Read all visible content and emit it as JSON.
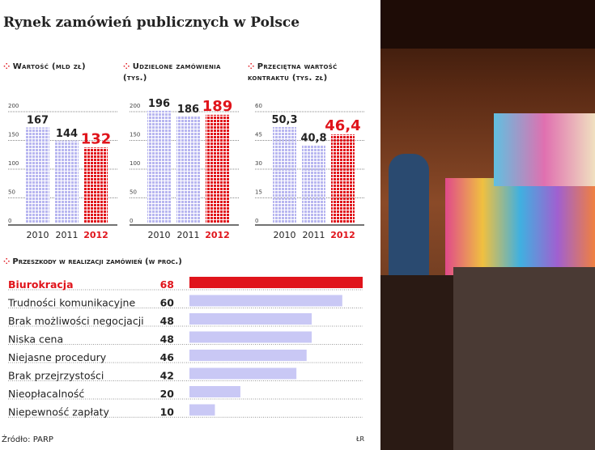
{
  "title": "Rynek zamówień publicznych w Polsce",
  "chart_data": [
    {
      "type": "bar",
      "title": "Wartość (mld zł)",
      "categories": [
        "2010",
        "2011",
        "2012"
      ],
      "values": [
        167,
        144,
        132
      ],
      "labels": [
        "167",
        "144",
        "132"
      ],
      "ylim": [
        0,
        200
      ],
      "yticks": [
        "0",
        "50",
        "100",
        "150",
        "200"
      ]
    },
    {
      "type": "bar",
      "title": "Udzielone zamówienia (tys.)",
      "categories": [
        "2010",
        "2011",
        "2012"
      ],
      "values": [
        196,
        186,
        189
      ],
      "labels": [
        "196",
        "186",
        "189"
      ],
      "ylim": [
        0,
        200
      ],
      "yticks": [
        "0",
        "50",
        "100",
        "150",
        "200"
      ]
    },
    {
      "type": "bar",
      "title": "Przeciętna wartość kontraktu (tys. zł)",
      "categories": [
        "2010",
        "2011",
        "2012"
      ],
      "values": [
        50.3,
        40.8,
        46.4
      ],
      "labels": [
        "50,3",
        "40,8",
        "46,4"
      ],
      "ylim": [
        0,
        60
      ],
      "yticks": [
        "0",
        "15",
        "30",
        "45",
        "60"
      ]
    },
    {
      "type": "bar",
      "orientation": "horizontal",
      "title": "Przeszkody w realizacji zamówień (w proc.)",
      "categories": [
        "Biurokracja",
        "Trudności komunikacyjne",
        "Brak możliwości negocjacji",
        "Niska cena",
        "Niejasne procedury",
        "Brak przejrzystości",
        "Nieopłacalność",
        "Niepewność zapłaty"
      ],
      "values": [
        68,
        60,
        48,
        48,
        46,
        42,
        20,
        10
      ],
      "xlim": [
        0,
        68
      ]
    }
  ],
  "colors": {
    "highlight": "#e0141b",
    "bar": "#c9c8f5",
    "text": "#222222"
  },
  "source": "Źródło: PARP",
  "credit": "ŁR"
}
